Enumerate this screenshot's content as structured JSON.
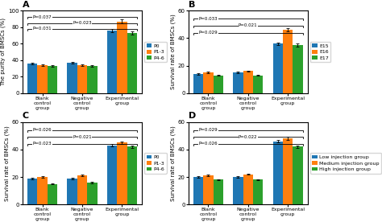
{
  "chart_data": [
    {
      "type": "bar",
      "title": "A",
      "y_label": "The purity of BMSCs (%)",
      "categories": [
        "Blank control group",
        "Negative control group",
        "Experimental group"
      ],
      "series": [
        {
          "name": "P0",
          "values": [
            36,
            37,
            76
          ],
          "errors": [
            1,
            1,
            2
          ]
        },
        {
          "name": "P1-3",
          "values": [
            34,
            34,
            87
          ],
          "errors": [
            1,
            1,
            2
          ]
        },
        {
          "name": "P4-6",
          "values": [
            33,
            33,
            73
          ],
          "errors": [
            1,
            1,
            2
          ]
        }
      ],
      "ylim": [
        0,
        100
      ],
      "yticks": [
        0,
        20,
        40,
        60,
        80,
        100
      ],
      "legend": "right",
      "annotations": [
        {
          "text": "P=0.031",
          "y": 78
        },
        {
          "text": "P=0.023",
          "y": 85
        },
        {
          "text": "P=0.037",
          "y": 92
        }
      ]
    },
    {
      "type": "bar",
      "title": "B",
      "y_label": "Survival rate of BMSCs (%)",
      "categories": [
        "Blank control group",
        "Negative control group",
        "Experimental group"
      ],
      "series": [
        {
          "name": "E15",
          "values": [
            14,
            15,
            36
          ],
          "errors": [
            0.5,
            0.5,
            1
          ]
        },
        {
          "name": "E16",
          "values": [
            15,
            16,
            46
          ],
          "errors": [
            0.5,
            0.5,
            1
          ]
        },
        {
          "name": "E17",
          "values": [
            13,
            13,
            35
          ],
          "errors": [
            0.5,
            0.5,
            1
          ]
        }
      ],
      "ylim": [
        0,
        60
      ],
      "yticks": [
        0,
        20,
        40,
        60
      ],
      "legend": "right",
      "annotations": [
        {
          "text": "P=0.029",
          "y": 44
        },
        {
          "text": "P=0.021",
          "y": 49
        },
        {
          "text": "P=0.033",
          "y": 54
        }
      ]
    },
    {
      "type": "bar",
      "title": "C",
      "y_label": "Survival rate of BMSCs (%)",
      "categories": [
        "Blank control group",
        "Negative control group",
        "Experimental group"
      ],
      "series": [
        {
          "name": "P0",
          "values": [
            19,
            19,
            43
          ],
          "errors": [
            0.5,
            0.5,
            1
          ]
        },
        {
          "name": "P1-3",
          "values": [
            20,
            21,
            45
          ],
          "errors": [
            0.5,
            0.5,
            1
          ]
        },
        {
          "name": "P4-6",
          "values": [
            15,
            16,
            42
          ],
          "errors": [
            0.5,
            0.5,
            1
          ]
        }
      ],
      "ylim": [
        0,
        60
      ],
      "yticks": [
        0,
        20,
        40,
        60
      ],
      "legend": "right",
      "annotations": [
        {
          "text": "P=0.023",
          "y": 44
        },
        {
          "text": "P=0.021",
          "y": 49
        },
        {
          "text": "P=0.026",
          "y": 54
        }
      ]
    },
    {
      "type": "bar",
      "title": "D",
      "y_label": "Survival rate of BMSCs (%)",
      "categories": [
        "Blank control group",
        "Negative control group",
        "Experimental group"
      ],
      "series": [
        {
          "name": "Low injection group",
          "values": [
            20,
            20,
            46
          ],
          "errors": [
            0.5,
            0.5,
            1
          ]
        },
        {
          "name": "Medium injection group",
          "values": [
            21,
            22,
            48
          ],
          "errors": [
            0.5,
            0.5,
            1
          ]
        },
        {
          "name": "High injection group",
          "values": [
            18,
            18,
            42
          ],
          "errors": [
            0.5,
            0.5,
            1
          ]
        }
      ],
      "ylim": [
        0,
        60
      ],
      "yticks": [
        0,
        20,
        40,
        60
      ],
      "legend": "right",
      "annotations": [
        {
          "text": "P=0.026",
          "y": 44
        },
        {
          "text": "P=0.022",
          "y": 49
        },
        {
          "text": "P=0.029",
          "y": 54
        }
      ]
    }
  ]
}
